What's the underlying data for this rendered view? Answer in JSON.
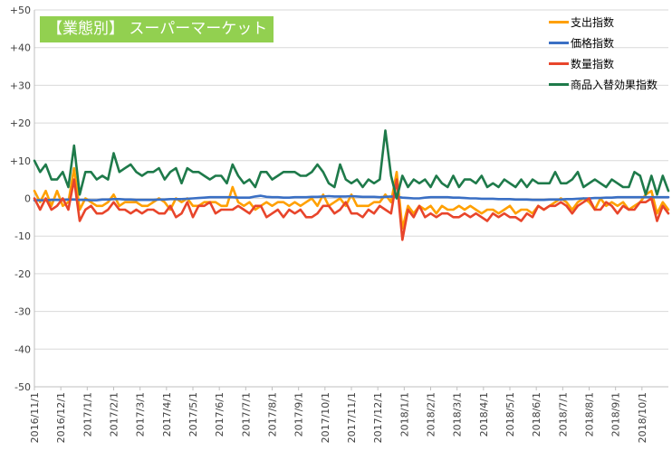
{
  "chart_data": {
    "type": "line",
    "title": "【業態別】 スーパーマーケット",
    "xlabel": "",
    "ylabel": "",
    "ylim": [
      -50,
      50
    ],
    "yticks": [
      50,
      40,
      30,
      20,
      10,
      0,
      -10,
      -20,
      -30,
      -40,
      -50
    ],
    "ytick_labels": [
      "+50",
      "+40",
      "+30",
      "+20",
      "+10",
      "0",
      "-10",
      "-20",
      "-30",
      "-40",
      "-50"
    ],
    "x_labels": [
      "2016/11/1",
      "2016/12/1",
      "2017/1/1",
      "2017/2/1",
      "2017/3/1",
      "2017/4/1",
      "2017/5/1",
      "2017/6/1",
      "2017/7/1",
      "2017/8/1",
      "2017/9/1",
      "2017/10/1",
      "2017/11/1",
      "2017/12/1",
      "2018/1/1",
      "2018/2/1",
      "2018/3/1",
      "2018/4/1",
      "2018/5/1",
      "2018/6/1",
      "2018/7/1",
      "2018/8/1",
      "2018/9/1",
      "2018/10/1"
    ],
    "grid": true,
    "legend_position": "top-right",
    "series": [
      {
        "name": "支出指数",
        "color": "#ffa000",
        "values": [
          2,
          -1,
          2,
          -2,
          2,
          -2,
          -1,
          8,
          -3,
          0,
          -1,
          -2,
          -2,
          -1,
          1,
          -2,
          -1,
          -1,
          -1,
          -2,
          -2,
          -1,
          0,
          -1,
          -3,
          0,
          -1,
          0,
          -2,
          -2,
          -1,
          -1,
          -1,
          -2,
          -2,
          3,
          -1,
          -2,
          -1,
          -3,
          -2,
          -1,
          -2,
          -1,
          -1,
          -2,
          -1,
          -2,
          -1,
          0,
          -2,
          1,
          -2,
          -1,
          0,
          -2,
          1,
          -2,
          -2,
          -2,
          -1,
          -1,
          1,
          -1,
          7,
          -8,
          -2,
          -4,
          -2,
          -3,
          -2,
          -4,
          -2,
          -3,
          -3,
          -2,
          -3,
          -2,
          -3,
          -4,
          -3,
          -3,
          -4,
          -3,
          -2,
          -4,
          -3,
          -3,
          -4,
          -2,
          -3,
          -2,
          -1,
          0,
          -1,
          -3,
          -1,
          0,
          -1,
          -3,
          0,
          -2,
          -1,
          -2,
          -1,
          -3,
          -2,
          -1,
          1,
          2,
          -4,
          -1,
          -3
        ],
        "avg": -1.5
      },
      {
        "name": "価格指数",
        "color": "#3a6fc4",
        "values": [
          -0.5,
          -0.5,
          -0.5,
          -0.4,
          -0.4,
          -0.4,
          -0.3,
          -0.3,
          -0.4,
          -0.4,
          -0.5,
          -0.5,
          -0.3,
          -0.3,
          -0.2,
          -0.2,
          -0.3,
          -0.3,
          -0.4,
          -0.4,
          -0.4,
          -0.4,
          -0.3,
          -0.3,
          -0.2,
          -0.2,
          -0.2,
          -0.1,
          0,
          0.1,
          0.2,
          0.3,
          0.3,
          0.3,
          0.3,
          0.3,
          0.2,
          0.2,
          0.2,
          0.5,
          0.7,
          0.4,
          0.3,
          0.3,
          0.2,
          0.2,
          0.3,
          0.3,
          0.3,
          0.4,
          0.4,
          0.5,
          0.6,
          0.5,
          0.5,
          0.5,
          0.6,
          0.5,
          0.4,
          0.4,
          0.4,
          0.3,
          0.4,
          0.5,
          0.4,
          0.2,
          0.1,
          0,
          0,
          0.2,
          0.3,
          0.3,
          0.3,
          0.3,
          0.2,
          0.2,
          0.1,
          0,
          0,
          -0.1,
          -0.1,
          -0.1,
          -0.2,
          -0.2,
          -0.2,
          -0.3,
          -0.3,
          -0.3,
          -0.4,
          -0.4,
          -0.4,
          -0.3,
          -0.3,
          -0.3,
          -0.2,
          -0.2,
          -0.1,
          0,
          0,
          0.1,
          0.1,
          0.2,
          0.2,
          0.3,
          0.3,
          0.3,
          0.3,
          0.3,
          0.3,
          0.3,
          0.3,
          0.3,
          0.3
        ]
      },
      {
        "name": "数量指数",
        "color": "#e8452b",
        "values": [
          0,
          -3,
          0,
          -3,
          -2,
          0,
          -3,
          5,
          -6,
          -3,
          -2,
          -4,
          -4,
          -3,
          -1,
          -3,
          -3,
          -4,
          -3,
          -4,
          -3,
          -3,
          -4,
          -4,
          -2,
          -5,
          -4,
          -1,
          -5,
          -2,
          -2,
          -1,
          -4,
          -3,
          -3,
          -3,
          -2,
          -3,
          -4,
          -2,
          -2,
          -5,
          -4,
          -3,
          -5,
          -3,
          -4,
          -3,
          -5,
          -5,
          -4,
          -2,
          -2,
          -4,
          -3,
          -1,
          -4,
          -4,
          -5,
          -3,
          -4,
          -2,
          -3,
          -4,
          5,
          -11,
          -3,
          -5,
          -2,
          -5,
          -4,
          -5,
          -4,
          -4,
          -5,
          -5,
          -4,
          -5,
          -4,
          -5,
          -6,
          -4,
          -5,
          -4,
          -5,
          -5,
          -6,
          -4,
          -5,
          -2,
          -3,
          -2,
          -2,
          -1,
          -2,
          -4,
          -2,
          -1,
          0,
          -3,
          -3,
          -1,
          -2,
          -4,
          -2,
          -3,
          -3,
          -1,
          -1,
          0,
          -6,
          -2,
          -4
        ]
      },
      {
        "name": "商品入替効果指数",
        "color": "#1e7a4a",
        "values": [
          10,
          7,
          9,
          5,
          5,
          7,
          3,
          14,
          1,
          7,
          7,
          5,
          6,
          5,
          12,
          7,
          8,
          9,
          7,
          6,
          7,
          7,
          8,
          5,
          7,
          8,
          4,
          8,
          7,
          7,
          6,
          5,
          6,
          6,
          4,
          9,
          6,
          4,
          5,
          3,
          7,
          7,
          5,
          6,
          7,
          7,
          7,
          6,
          6,
          7,
          9,
          7,
          4,
          3,
          9,
          5,
          4,
          5,
          3,
          5,
          4,
          5,
          18,
          6,
          0,
          6,
          3,
          5,
          4,
          5,
          3,
          6,
          4,
          3,
          6,
          3,
          5,
          5,
          4,
          6,
          3,
          4,
          3,
          5,
          4,
          3,
          5,
          3,
          5,
          4,
          4,
          4,
          7,
          4,
          4,
          5,
          7,
          3,
          4,
          5,
          4,
          3,
          5,
          4,
          3,
          3,
          7,
          6,
          1,
          6,
          1,
          6,
          2
        ]
      }
    ]
  }
}
